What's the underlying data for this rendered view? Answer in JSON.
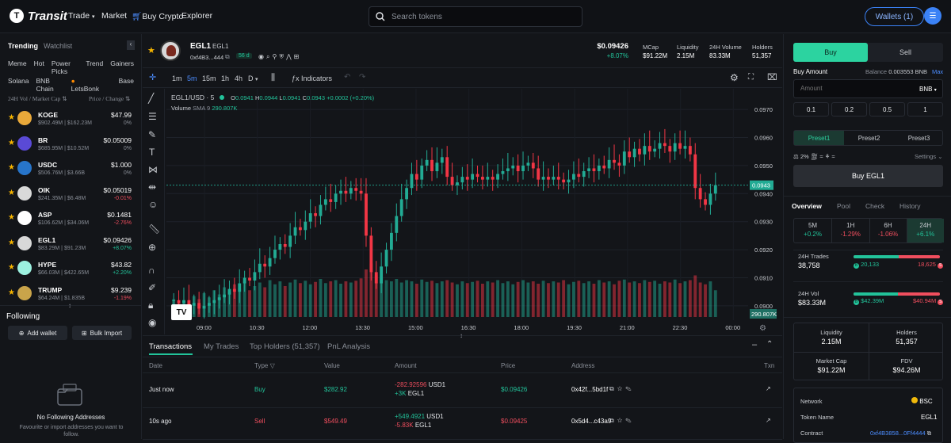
{
  "header": {
    "logo": "Transit",
    "nav": [
      "Trade",
      "Market",
      "Buy Crypto",
      "Explorer"
    ],
    "search_placeholder": "Search tokens",
    "wallets_label": "Wallets (1)"
  },
  "sidebar": {
    "tabs": [
      "Trending",
      "Watchlist"
    ],
    "filters1": [
      "Meme",
      "Hot",
      "Power Picks",
      "Trend",
      "Gainers"
    ],
    "filters2": [
      "Solana",
      "BNB Chain",
      "LetsBonk",
      "Base"
    ],
    "col_left": "24H Vol / Market Cap",
    "col_right": "Price / Change",
    "tokens": [
      {
        "name": "KOGE",
        "sub": "$902.49M | $162.23M",
        "price": "$47.99",
        "change": "0%",
        "dir": "flat",
        "color": "#e9a93a"
      },
      {
        "name": "BR",
        "sub": "$685.95M | $10.52M",
        "price": "$0.05009",
        "change": "0%",
        "dir": "flat",
        "color": "#5a4ad6"
      },
      {
        "name": "USDC",
        "sub": "$506.76M | $3.66B",
        "price": "$1.000",
        "change": "0%",
        "dir": "flat",
        "color": "#2775ca"
      },
      {
        "name": "OIK",
        "sub": "$241.35M | $6.48M",
        "price": "$0.05019",
        "change": "-0.01%",
        "dir": "down",
        "color": "#d9d9d9"
      },
      {
        "name": "ASP",
        "sub": "$106.62M | $34.06M",
        "price": "$0.1481",
        "change": "-2.76%",
        "dir": "down",
        "color": "#ffffff"
      },
      {
        "name": "EGL1",
        "sub": "$83.29M | $91.23M",
        "price": "$0.09426",
        "change": "+8.07%",
        "dir": "up",
        "color": "#d8d8d8"
      },
      {
        "name": "HYPE",
        "sub": "$66.03M | $422.65M",
        "price": "$43.82",
        "change": "+2.20%",
        "dir": "up",
        "color": "#9cf1e0"
      },
      {
        "name": "TRUMP",
        "sub": "$64.24M | $1.835B",
        "price": "$9.239",
        "change": "-1.19%",
        "dir": "down",
        "color": "#c9a44a"
      }
    ],
    "following_title": "Following",
    "add_wallet": "Add wallet",
    "bulk_import": "Bulk Import",
    "empty_title": "No Following Addresses",
    "empty_sub": "Favourite or import addresses you want to follow."
  },
  "token": {
    "name": "EGL1",
    "symbol": "EGL1",
    "address": "0xf4B3...444",
    "age": "56 d",
    "price": "$0.09426",
    "change": "+8.07%",
    "stats": [
      {
        "label": "MCap",
        "value": "$91.22M"
      },
      {
        "label": "Liquidity",
        "value": "2.15M"
      },
      {
        "label": "24H Volume",
        "value": "83.33M"
      },
      {
        "label": "Holders",
        "value": "51,357"
      }
    ]
  },
  "chart_toolbar": {
    "intervals": [
      "1m",
      "5m",
      "15m",
      "1h",
      "4h",
      "D"
    ],
    "active": "5m",
    "indicators": "Indicators"
  },
  "chart_data": {
    "type": "candlestick",
    "pair": "EGL1/USD",
    "interval": "5",
    "ohlc_label": {
      "o": "0.0941",
      "h": "0.0944",
      "l": "0.0941",
      "c": "0.0943",
      "chg": "+0.0002 (+0.20%)"
    },
    "volume_label": "Volume",
    "sma_label": "SMA 9",
    "sma_value": "290.807K",
    "volume_badge": "290.807K",
    "current_price": "0.0943",
    "yticks": [
      "0.0970",
      "0.0960",
      "0.0950",
      "0.0940",
      "0.0930",
      "0.0920",
      "0.0910",
      "0.0900"
    ],
    "ylim": [
      0.0896,
      0.0974
    ],
    "xticks": [
      "09:00",
      "10:30",
      "12:00",
      "13:30",
      "15:00",
      "16:30",
      "18:00",
      "19:30",
      "21:00",
      "22:30",
      "00:00"
    ],
    "closes": [
      0.0902,
      0.0901,
      0.0902,
      0.09,
      0.0901,
      0.0899,
      0.09,
      0.0901,
      0.0902,
      0.0903,
      0.0904,
      0.0906,
      0.0905,
      0.0908,
      0.091,
      0.0909,
      0.0912,
      0.0915,
      0.0914,
      0.0917,
      0.092,
      0.0922,
      0.0921,
      0.0925,
      0.0928,
      0.0927,
      0.093,
      0.0933,
      0.0932,
      0.0936,
      0.0938,
      0.0937,
      0.094,
      0.0941,
      0.094,
      0.0942,
      0.0941,
      0.094,
      0.0925,
      0.0912,
      0.0908,
      0.0914,
      0.092,
      0.0926,
      0.0932,
      0.0938,
      0.0942,
      0.0947,
      0.0945,
      0.095,
      0.0952,
      0.0948,
      0.0951,
      0.0953,
      0.0946,
      0.0943,
      0.0944,
      0.0946,
      0.0945,
      0.0947,
      0.0946,
      0.0945,
      0.0946,
      0.0945,
      0.0947,
      0.0948,
      0.0949,
      0.095,
      0.0948,
      0.095,
      0.0951,
      0.0949,
      0.0945,
      0.0946,
      0.0945,
      0.0946,
      0.0945,
      0.0944,
      0.0945,
      0.0947,
      0.0946,
      0.0948,
      0.0949,
      0.0948,
      0.095,
      0.0949,
      0.0952,
      0.0951,
      0.095,
      0.0955,
      0.0953,
      0.0956,
      0.0954,
      0.0957,
      0.0955,
      0.0956,
      0.0958,
      0.0957,
      0.0955,
      0.0958,
      0.0956,
      0.0957,
      0.0954,
      0.0942,
      0.0938,
      0.0936,
      0.094,
      0.0943
    ],
    "volumes": [
      0.3,
      0.25,
      0.28,
      0.22,
      0.35,
      0.3,
      0.4,
      0.33,
      0.45,
      0.38,
      0.5,
      0.42,
      0.55,
      0.48,
      0.6,
      0.45,
      0.52,
      0.58,
      0.5,
      0.62,
      0.55,
      0.6,
      0.52,
      0.58,
      0.63,
      0.57,
      0.61,
      0.55,
      0.59,
      0.64,
      0.57,
      0.6,
      0.62,
      0.56,
      0.6,
      0.58,
      0.61,
      0.65,
      0.8,
      0.9,
      0.7,
      0.66,
      0.62,
      0.6,
      0.64,
      0.58,
      0.62,
      0.6,
      0.56,
      0.63,
      0.59,
      0.61,
      0.57,
      0.6,
      0.62,
      0.58,
      0.55,
      0.6,
      0.57,
      0.59,
      0.61,
      0.56,
      0.6,
      0.58,
      0.62,
      0.57,
      0.6,
      0.55,
      0.59,
      0.62,
      0.58,
      0.6,
      0.56,
      0.61,
      0.57,
      0.6,
      0.58,
      0.62,
      0.55,
      0.59,
      0.61,
      0.57,
      0.6,
      0.56,
      0.62,
      0.58,
      0.6,
      0.55,
      0.61,
      0.63,
      0.58,
      0.6,
      0.57,
      0.62,
      0.59,
      0.61,
      0.56,
      0.6,
      0.58,
      0.63,
      0.57,
      0.6,
      0.62,
      0.7,
      0.58,
      0.55,
      0.6,
      0.45
    ]
  },
  "transactions": {
    "tabs": [
      "Transactions",
      "My Trades",
      "Top Holders (51,357)",
      "PnL Analysis"
    ],
    "headers": [
      "Date",
      "Type",
      "Value",
      "Amount",
      "Price",
      "Address",
      "Txn"
    ],
    "rows": [
      {
        "date": "Just now",
        "type": "Buy",
        "value": "$282.92",
        "amount1": "-282.92596",
        "unit1": "USD1",
        "amount2": "+3K",
        "unit2": "EGL1",
        "price": "$0.09426",
        "address": "0x42f...5bd1f"
      },
      {
        "date": "10s ago",
        "type": "Sell",
        "value": "$549.49",
        "amount1": "+549.4921",
        "unit1": "USD1",
        "amount2": "-5.83K",
        "unit2": "EGL1",
        "price": "$0.09425",
        "address": "0x5d4...c43a9"
      }
    ]
  },
  "trade": {
    "buy_tab": "Buy",
    "sell_tab": "Sell",
    "buy_amount_label": "Buy Amount",
    "balance_label": "Balance",
    "balance": "0.003553 BNB",
    "max": "Max",
    "amount_placeholder": "Amount",
    "currency": "BNB",
    "quick": [
      "0.1",
      "0.2",
      "0.5",
      "1"
    ],
    "presets": [
      "Preset1",
      "Preset2",
      "Preset3"
    ],
    "slippage": "2%",
    "settings": "Settings",
    "buy_button": "Buy EGL1"
  },
  "overview": {
    "tabs": [
      "Overview",
      "Pool",
      "Check",
      "History"
    ],
    "periods": [
      {
        "label": "5M",
        "value": "+0.2%",
        "dir": "up"
      },
      {
        "label": "1H",
        "value": "-1.29%",
        "dir": "down"
      },
      {
        "label": "6H",
        "value": "-1.06%",
        "dir": "down"
      },
      {
        "label": "24H",
        "value": "+6.1%",
        "dir": "up"
      }
    ],
    "trades_label": "24H Trades",
    "trades_value": "38,758",
    "trades_buy": "20,133",
    "trades_sell": "18,625",
    "trades_buy_frac": 0.52,
    "vol_label": "24H Vol",
    "vol_value": "$83.33M",
    "vol_buy": "$42.39M",
    "vol_sell": "$40.94M",
    "vol_buy_frac": 0.51,
    "cells": [
      {
        "label": "Liquidity",
        "value": "2.15M"
      },
      {
        "label": "Holders",
        "value": "51,357"
      },
      {
        "label": "Market Cap",
        "value": "$91.22M"
      },
      {
        "label": "FDV",
        "value": "$94.26M"
      }
    ],
    "network_label": "Network",
    "network": "BSC",
    "token_name_label": "Token Name",
    "token_name": "EGL1",
    "contract_label": "Contract",
    "contract": "0xf4B3858...0Ff4444"
  }
}
